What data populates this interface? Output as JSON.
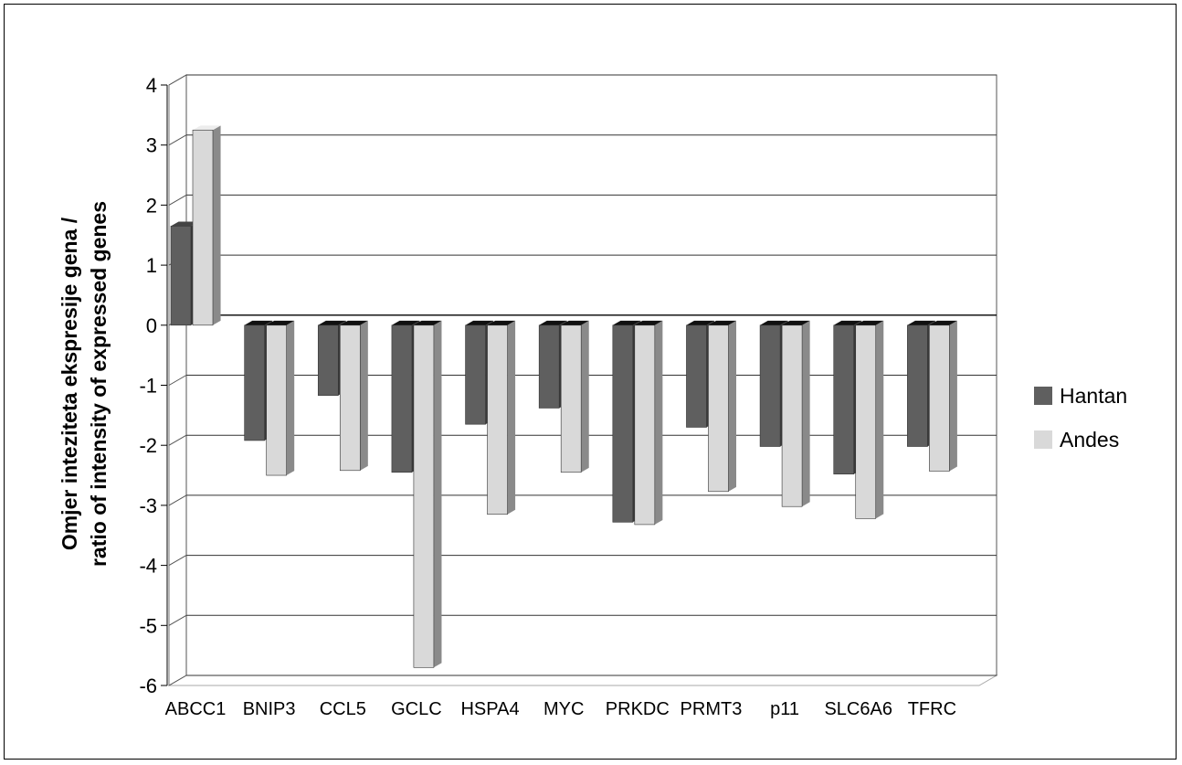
{
  "chart_data": {
    "type": "bar",
    "style": "3d-clustered",
    "title": "",
    "xlabel": "",
    "ylabel": [
      "Omjer inteziteta ekspresije gena /",
      "ratio of intensity of expressed genes"
    ],
    "categories": [
      "ABCC1",
      "BNIP3",
      "CCL5",
      "GCLC",
      "HSPA4",
      "MYC",
      "PRKDC",
      "PRMT3",
      "p11",
      "SLC6A6",
      "TFRC"
    ],
    "series": [
      {
        "name": "Hantan",
        "color": "#5f5f5f",
        "values": [
          1.65,
          -1.92,
          -1.17,
          -2.45,
          -1.65,
          -1.38,
          -3.28,
          -1.7,
          -2.02,
          -2.48,
          -2.02
        ]
      },
      {
        "name": "Andes",
        "color": "#d9d9d9",
        "values": [
          3.25,
          -2.5,
          -2.42,
          -5.7,
          -3.15,
          -2.45,
          -3.32,
          -2.77,
          -3.02,
          -3.22,
          -2.43
        ]
      }
    ],
    "yticks": [
      "4",
      "3",
      "2",
      "1",
      "0",
      "-1",
      "-2",
      "-3",
      "-4",
      "-5",
      "-6"
    ],
    "ylim": [
      -6,
      4
    ],
    "grid": true,
    "legend": "right"
  }
}
